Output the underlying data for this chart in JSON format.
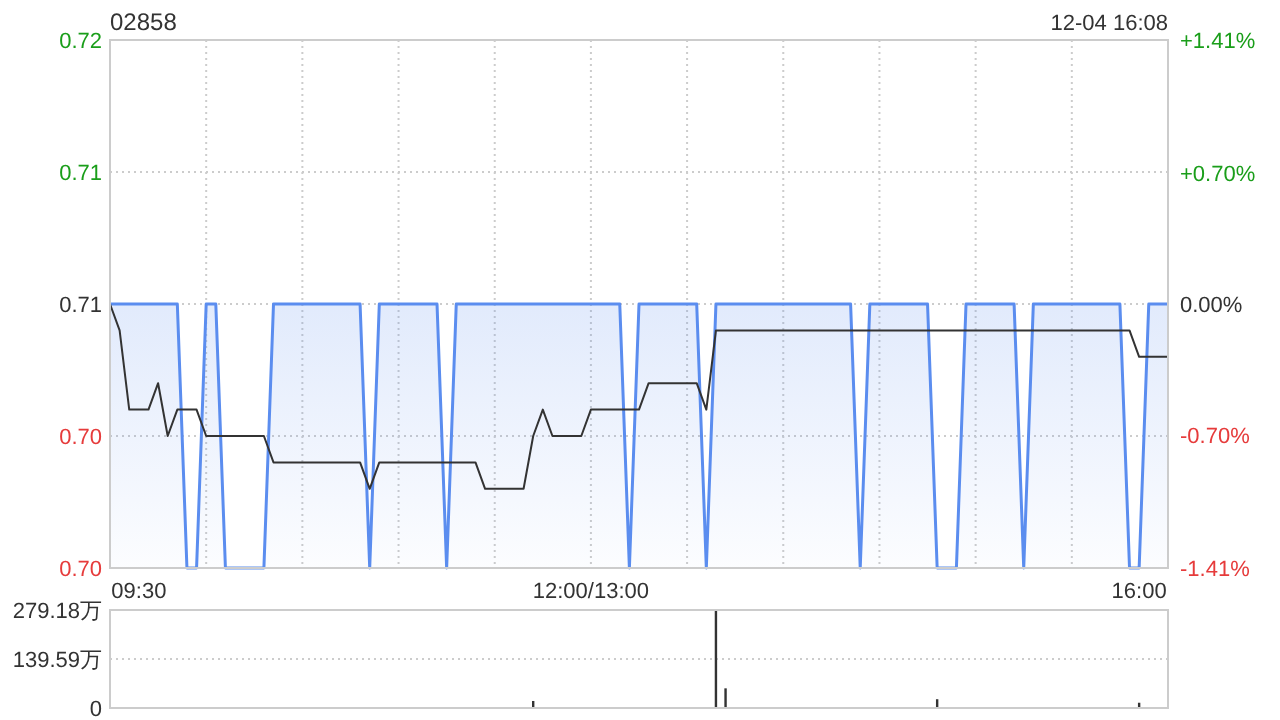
{
  "chart_data": [
    {
      "type": "line",
      "title": "02858",
      "subtitle": "12-04 16:08",
      "grid": true,
      "categories": [
        null,
        null,
        null,
        "09:30",
        null,
        null,
        null,
        null,
        null,
        null,
        null,
        null,
        null,
        null,
        null,
        null,
        null,
        null,
        null,
        null,
        null,
        null,
        null,
        null,
        null,
        null,
        null,
        null,
        null,
        null,
        null,
        null,
        null,
        null,
        null,
        null,
        null,
        null,
        null,
        null,
        null,
        null,
        null,
        null,
        null,
        null,
        null,
        null,
        null,
        null,
        "12:00/13:00",
        null,
        null,
        null,
        null,
        null,
        null,
        null,
        null,
        null,
        null,
        null,
        null,
        null,
        null,
        null,
        null,
        null,
        null,
        null,
        null,
        null,
        null,
        null,
        null,
        null,
        null,
        null,
        null,
        null,
        null,
        null,
        null,
        null,
        null,
        null,
        null,
        null,
        null,
        null,
        null,
        null,
        null,
        null,
        null,
        null,
        null,
        null,
        null,
        null,
        null,
        null,
        null,
        null,
        null,
        null,
        null,
        "16:00",
        null,
        null,
        null
      ],
      "ylim": [
        0.7,
        0.72
      ],
      "yticks": [
        0.72,
        {
          "value": 0.715,
          "label": "0.71"
        },
        0.71,
        {
          "value": 0.705,
          "label": "0.70"
        },
        {
          "value": 0.7,
          "label": "0.70"
        }
      ],
      "y2lim": [
        -1.41,
        1.41
      ],
      "y2ticks": [
        {
          "value": 1.41,
          "label": "+1.41%"
        },
        {
          "value": 0.7,
          "label": "+0.70%"
        },
        {
          "value": 0,
          "label": "0.00%"
        },
        {
          "value": -0.7,
          "label": "-0.70%"
        },
        {
          "value": -1.41,
          "label": "-1.41%"
        }
      ],
      "series": [
        {
          "type": "area",
          "color": "#5b8def",
          "values": [
            0.71,
            0.71,
            0.71,
            0.71,
            0.71,
            0.71,
            0.71,
            0.71,
            0.7,
            0.7,
            0.71,
            0.71,
            0.7,
            0.7,
            0.7,
            0.7,
            0.7,
            0.71,
            0.71,
            0.71,
            0.71,
            0.71,
            0.71,
            0.71,
            0.71,
            0.71,
            0.71,
            0.7,
            0.71,
            0.71,
            0.71,
            0.71,
            0.71,
            0.71,
            0.71,
            0.7,
            0.71,
            0.71,
            0.71,
            0.71,
            0.71,
            0.71,
            0.71,
            0.71,
            0.71,
            0.71,
            0.71,
            0.71,
            0.71,
            0.71,
            0.71,
            0.71,
            0.71,
            0.71,
            0.7,
            0.71,
            0.71,
            0.71,
            0.71,
            0.71,
            0.71,
            0.71,
            0.7,
            0.71,
            0.71,
            0.71,
            0.71,
            0.71,
            0.71,
            0.71,
            0.71,
            0.71,
            0.71,
            0.71,
            0.71,
            0.71,
            0.71,
            0.71,
            0.7,
            0.71,
            0.71,
            0.71,
            0.71,
            0.71,
            0.71,
            0.71,
            0.7,
            0.7,
            0.7,
            0.71,
            0.71,
            0.71,
            0.71,
            0.71,
            0.71,
            0.7,
            0.71,
            0.71,
            0.71,
            0.71,
            0.71,
            0.71,
            0.71,
            0.71,
            0.71,
            0.71,
            0.7,
            0.7,
            0.71,
            0.71,
            0.71
          ]
        },
        {
          "type": "line",
          "color": "#333333",
          "values": [
            0.71,
            0.709,
            0.706,
            0.706,
            0.706,
            0.707,
            0.705,
            0.706,
            0.706,
            0.706,
            0.705,
            0.705,
            0.705,
            0.705,
            0.705,
            0.705,
            0.705,
            0.704,
            0.704,
            0.704,
            0.704,
            0.704,
            0.704,
            0.704,
            0.704,
            0.704,
            0.704,
            0.703,
            0.704,
            0.704,
            0.704,
            0.704,
            0.704,
            0.704,
            0.704,
            0.704,
            0.704,
            0.704,
            0.704,
            0.703,
            0.703,
            0.703,
            0.703,
            0.703,
            0.705,
            0.706,
            0.705,
            0.705,
            0.705,
            0.705,
            0.706,
            0.706,
            0.706,
            0.706,
            0.706,
            0.706,
            0.707,
            0.707,
            0.707,
            0.707,
            0.707,
            0.707,
            0.706,
            0.709,
            0.709,
            0.709,
            0.709,
            0.709,
            0.709,
            0.709,
            0.709,
            0.709,
            0.709,
            0.709,
            0.709,
            0.709,
            0.709,
            0.709,
            0.709,
            0.709,
            0.709,
            0.709,
            0.709,
            0.709,
            0.709,
            0.709,
            0.709,
            0.709,
            0.709,
            0.709,
            0.709,
            0.709,
            0.709,
            0.709,
            0.709,
            0.709,
            0.709,
            0.709,
            0.709,
            0.709,
            0.709,
            0.709,
            0.709,
            0.709,
            0.709,
            0.709,
            0.709,
            0.708,
            0.708,
            0.708,
            0.708
          ]
        }
      ]
    },
    {
      "type": "bar",
      "grid": "y",
      "tick_labels": "y",
      "categories": [
        null,
        null,
        null,
        null,
        null,
        null,
        null,
        null,
        null,
        null,
        null,
        null,
        null,
        null,
        null,
        null,
        null,
        null,
        null,
        null,
        null,
        null,
        null,
        null,
        null,
        null,
        null,
        null,
        null,
        null,
        null,
        null,
        null,
        null,
        null,
        null,
        null,
        null,
        null,
        null,
        null,
        null,
        null,
        null,
        null,
        null,
        null,
        null,
        null,
        null,
        null,
        null,
        null,
        null,
        null,
        null,
        null,
        null,
        null,
        null,
        null,
        null,
        null,
        null,
        null,
        null,
        null,
        null,
        null,
        null,
        null,
        null,
        null,
        null,
        null,
        null,
        null,
        null,
        null,
        null,
        null,
        null,
        null,
        null,
        null,
        null,
        null,
        null,
        null,
        null,
        null,
        null,
        null,
        null,
        null,
        null,
        null,
        null,
        null,
        null,
        null,
        null,
        null,
        null,
        null,
        null,
        null,
        null,
        null,
        null,
        null
      ],
      "ylim": [
        0,
        279.18
      ],
      "yticks": [
        0,
        {
          "value": 139.59,
          "label": "139.59万"
        },
        {
          "value": 279.18,
          "label": "279.18万"
        }
      ],
      "color": "#333333",
      "values": [
        null,
        null,
        null,
        null,
        null,
        null,
        null,
        null,
        null,
        null,
        null,
        null,
        null,
        null,
        null,
        null,
        null,
        null,
        null,
        null,
        null,
        null,
        null,
        null,
        null,
        null,
        null,
        null,
        null,
        null,
        null,
        null,
        null,
        null,
        null,
        null,
        null,
        null,
        null,
        null,
        null,
        null,
        null,
        null,
        20,
        null,
        null,
        null,
        null,
        null,
        null,
        null,
        null,
        null,
        null,
        null,
        null,
        null,
        null,
        null,
        null,
        null,
        null,
        279.18,
        56,
        null,
        null,
        null,
        null,
        null,
        null,
        null,
        null,
        null,
        null,
        null,
        null,
        null,
        null,
        null,
        null,
        null,
        null,
        null,
        null,
        null,
        25,
        null,
        null,
        null,
        null,
        null,
        null,
        null,
        null,
        null,
        null,
        null,
        null,
        null,
        null,
        null,
        null,
        null,
        null,
        null,
        null,
        15,
        null,
        null,
        null
      ]
    }
  ]
}
